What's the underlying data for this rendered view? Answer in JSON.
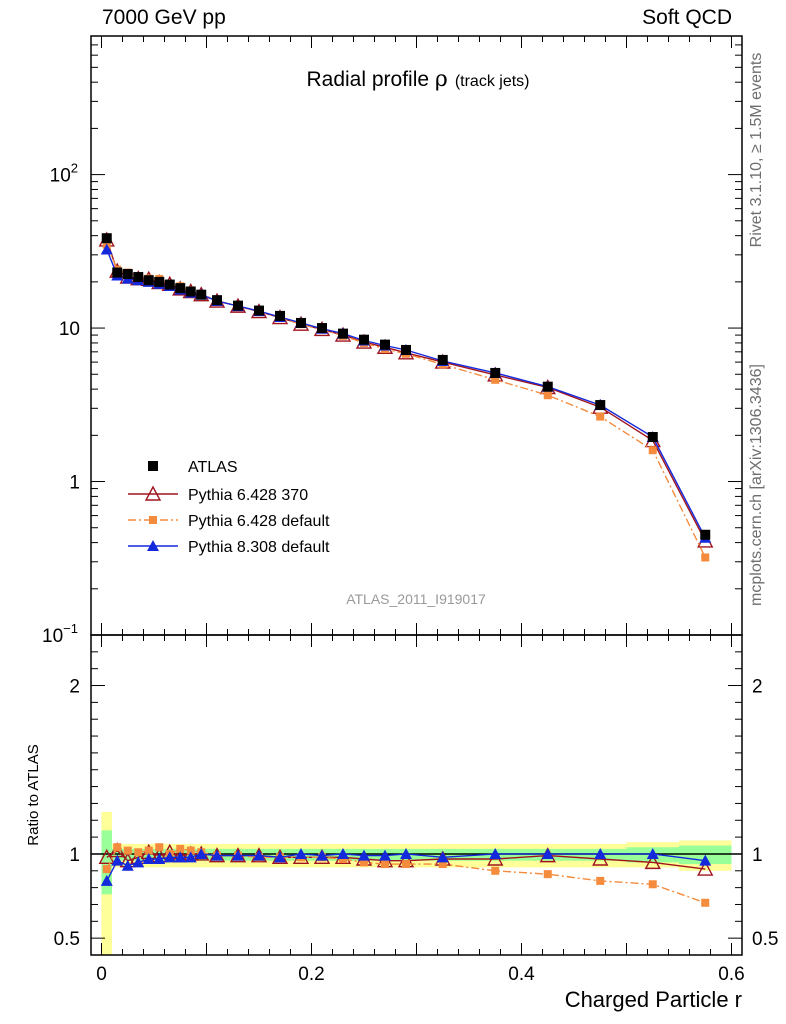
{
  "header": {
    "left": "7000 GeV pp",
    "right": "Soft QCD"
  },
  "side_labels": {
    "top": "Rivet 3.1.10, ≥ 1.5M events",
    "bottom": "mcplots.cern.ch [arXiv:1306.3436]"
  },
  "watermark": "ATLAS_2011_I919017",
  "chart_data": [
    {
      "type": "line",
      "title": "Radial profile",
      "title_symbol": "ρ",
      "title_suffix": "(track jets)",
      "yscale": "log",
      "ylim": [
        0.1,
        800
      ],
      "xlim": [
        -0.01,
        0.61
      ],
      "y_ticks": [
        {
          "value": 0.1,
          "base": "10",
          "exp": "−1"
        },
        {
          "value": 1,
          "base": "1",
          "exp": ""
        },
        {
          "value": 10,
          "base": "10",
          "exp": ""
        },
        {
          "value": 100,
          "base": "10",
          "exp": "2"
        }
      ],
      "x": [
        0.005,
        0.015,
        0.025,
        0.035,
        0.045,
        0.055,
        0.065,
        0.075,
        0.085,
        0.095,
        0.11,
        0.13,
        0.15,
        0.17,
        0.19,
        0.21,
        0.23,
        0.25,
        0.27,
        0.29,
        0.325,
        0.375,
        0.425,
        0.475,
        0.525,
        0.575
      ],
      "series": [
        {
          "name": "ATLAS",
          "color": "#000000",
          "marker": "square",
          "values": [
            38.5,
            23.0,
            22.5,
            21.5,
            20.5,
            20.0,
            19.2,
            18.2,
            17.3,
            16.5,
            15.2,
            14.0,
            13.0,
            12.0,
            10.8,
            10.0,
            9.2,
            8.4,
            7.8,
            7.2,
            6.2,
            5.1,
            4.15,
            3.15,
            1.95,
            0.45
          ]
        },
        {
          "name": "Pythia 6.428 370",
          "color": "#a0141e",
          "marker": "triangle-open",
          "values": [
            37.5,
            23.5,
            21.5,
            21.0,
            20.8,
            19.8,
            19.3,
            18.0,
            17.3,
            16.5,
            15.0,
            13.9,
            12.8,
            11.7,
            10.6,
            9.8,
            9.0,
            8.1,
            7.5,
            6.9,
            6.0,
            4.95,
            4.1,
            3.05,
            1.85,
            0.41
          ]
        },
        {
          "name": "Pythia 6.428 default",
          "color": "#f58b3c",
          "marker": "square-small",
          "dash": "dashdot",
          "values": [
            35.0,
            24.0,
            23.0,
            21.7,
            21.0,
            20.9,
            19.2,
            18.7,
            17.6,
            16.7,
            15.1,
            13.9,
            12.8,
            11.7,
            10.6,
            9.8,
            8.9,
            8.0,
            7.3,
            6.8,
            5.8,
            4.6,
            3.65,
            2.65,
            1.6,
            0.32
          ]
        },
        {
          "name": "Pythia 8.308 default",
          "color": "#1428dc",
          "marker": "triangle",
          "values": [
            32.5,
            22.0,
            21.0,
            20.5,
            20.0,
            19.4,
            18.8,
            17.8,
            17.0,
            16.5,
            15.0,
            13.9,
            12.9,
            11.8,
            10.8,
            9.9,
            9.2,
            8.3,
            7.7,
            7.2,
            6.1,
            5.1,
            4.15,
            3.15,
            1.95,
            0.43
          ]
        }
      ]
    },
    {
      "type": "line",
      "ylabel": "Ratio to ATLAS",
      "xlabel": "Charged Particle r",
      "ylim": [
        0.4,
        2.3
      ],
      "xlim": [
        -0.01,
        0.61
      ],
      "x_ticks": [
        {
          "value": 0,
          "label": "0"
        },
        {
          "value": 0.2,
          "label": "0.2"
        },
        {
          "value": 0.4,
          "label": "0.4"
        },
        {
          "value": 0.6,
          "label": "0.6"
        }
      ],
      "y_ticks": [
        {
          "value": 0.5,
          "label": "0.5"
        },
        {
          "value": 1,
          "label": "1"
        },
        {
          "value": 2,
          "label": "2"
        }
      ],
      "x": [
        0.005,
        0.015,
        0.025,
        0.035,
        0.045,
        0.055,
        0.065,
        0.075,
        0.085,
        0.095,
        0.11,
        0.13,
        0.15,
        0.17,
        0.19,
        0.21,
        0.23,
        0.25,
        0.27,
        0.29,
        0.325,
        0.375,
        0.425,
        0.475,
        0.525,
        0.575
      ],
      "band_outer": {
        "color": "#ffff99",
        "lo": [
          0.38,
          0.92,
          0.92,
          0.92,
          0.92,
          0.92,
          0.92,
          0.92,
          0.92,
          0.92,
          0.92,
          0.92,
          0.92,
          0.92,
          0.92,
          0.92,
          0.92,
          0.92,
          0.92,
          0.92,
          0.92,
          0.92,
          0.92,
          0.92,
          0.92,
          0.9
        ],
        "hi": [
          1.25,
          1.06,
          1.06,
          1.06,
          1.06,
          1.06,
          1.06,
          1.06,
          1.06,
          1.06,
          1.06,
          1.06,
          1.06,
          1.06,
          1.06,
          1.06,
          1.06,
          1.06,
          1.06,
          1.06,
          1.06,
          1.06,
          1.06,
          1.06,
          1.07,
          1.08
        ]
      },
      "band_inner": {
        "color": "#99ff99",
        "lo": [
          0.76,
          0.96,
          0.96,
          0.96,
          0.96,
          0.96,
          0.96,
          0.96,
          0.96,
          0.96,
          0.96,
          0.96,
          0.96,
          0.96,
          0.96,
          0.96,
          0.96,
          0.96,
          0.96,
          0.96,
          0.96,
          0.96,
          0.96,
          0.96,
          0.95,
          0.94
        ],
        "hi": [
          1.14,
          1.03,
          1.03,
          1.03,
          1.03,
          1.03,
          1.03,
          1.03,
          1.03,
          1.03,
          1.03,
          1.03,
          1.03,
          1.03,
          1.03,
          1.03,
          1.03,
          1.03,
          1.03,
          1.03,
          1.03,
          1.03,
          1.03,
          1.03,
          1.04,
          1.05
        ]
      },
      "series": [
        {
          "name": "Pythia 6.428 370",
          "color": "#a0141e",
          "marker": "triangle-open",
          "values": [
            0.98,
            1.02,
            0.96,
            0.98,
            1.01,
            0.99,
            1.01,
            0.99,
            1.0,
            1.0,
            0.99,
            0.99,
            0.99,
            0.98,
            0.98,
            0.98,
            0.98,
            0.97,
            0.96,
            0.96,
            0.97,
            0.97,
            0.99,
            0.97,
            0.95,
            0.91
          ]
        },
        {
          "name": "Pythia 6.428 default",
          "color": "#f58b3c",
          "marker": "square-small",
          "dash": "dashdot",
          "values": [
            0.91,
            1.04,
            1.02,
            1.01,
            1.02,
            1.04,
            1.0,
            1.03,
            1.02,
            1.01,
            0.99,
            0.99,
            0.98,
            0.98,
            0.98,
            0.98,
            0.97,
            0.95,
            0.94,
            0.94,
            0.94,
            0.9,
            0.88,
            0.84,
            0.82,
            0.71
          ]
        },
        {
          "name": "Pythia 8.308 default",
          "color": "#1428dc",
          "marker": "triangle",
          "values": [
            0.84,
            0.96,
            0.93,
            0.95,
            0.97,
            0.97,
            0.98,
            0.98,
            0.98,
            1.0,
            0.99,
            0.99,
            0.99,
            0.98,
            1.0,
            0.99,
            1.0,
            0.99,
            0.99,
            1.0,
            0.98,
            1.0,
            1.0,
            1.0,
            1.0,
            0.96
          ]
        }
      ]
    }
  ]
}
